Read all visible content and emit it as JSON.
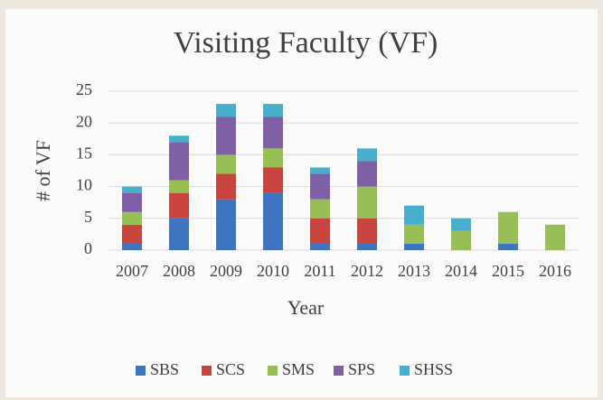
{
  "chart_data": {
    "type": "stacked_bar",
    "title": "Visiting Faculty (VF)",
    "x_label": "Year",
    "y_label": "# of VF",
    "categories": [
      "2007",
      "2008",
      "2009",
      "2010",
      "2011",
      "2012",
      "2013",
      "2014",
      "2015",
      "2016"
    ],
    "series": [
      {
        "name": "SBS",
        "color": "#3f74c0",
        "values": [
          1,
          5,
          8,
          9,
          1,
          1,
          1,
          0,
          1,
          0
        ]
      },
      {
        "name": "SCS",
        "color": "#c9443f",
        "values": [
          3,
          4,
          4,
          4,
          4,
          4,
          0,
          0,
          0,
          0
        ]
      },
      {
        "name": "SMS",
        "color": "#98bf55",
        "values": [
          2,
          2,
          3,
          3,
          3,
          5,
          3,
          3,
          5,
          4
        ]
      },
      {
        "name": "SPS",
        "color": "#7f5fa6",
        "values": [
          3,
          6,
          6,
          5,
          4,
          4,
          0,
          0,
          0,
          0
        ]
      },
      {
        "name": "SHSS",
        "color": "#47afcb",
        "values": [
          1,
          1,
          2,
          2,
          1,
          2,
          3,
          2,
          0,
          0
        ]
      }
    ],
    "ylim": [
      0,
      25
    ],
    "yticks": [
      0,
      5,
      10,
      15,
      20,
      25
    ],
    "grid": true,
    "legend": "bottom"
  }
}
